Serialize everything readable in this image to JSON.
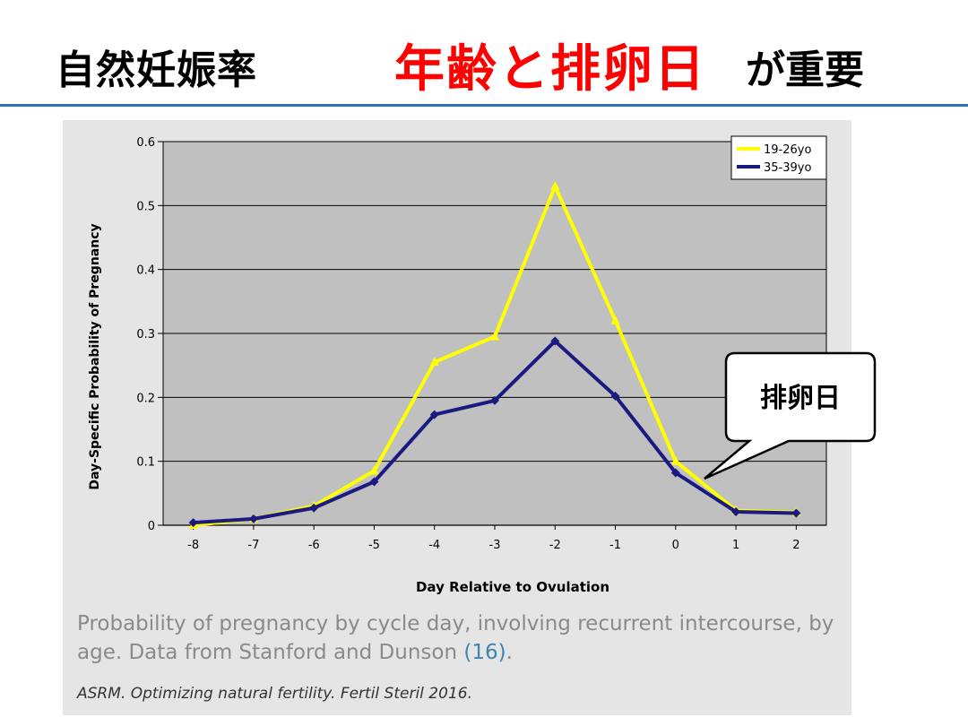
{
  "slide": {
    "title_main": "自然妊娠率",
    "title_accent": "年齢と排卵日",
    "title_tail": "が重要",
    "callout": "排卵日",
    "caption_text": "Probability of pregnancy by cycle day, involving recurrent intercourse, by age. Data from Stanford and Dunson ",
    "caption_ref": "(16)",
    "caption_end": ".",
    "citation": "ASRM. Optimizing natural fertility. Fertil Steril 2016."
  },
  "colors": {
    "accent_red": "#ff0000",
    "rule_blue": "#2e74b5",
    "plot_bg": "#c0c0c0",
    "series_young": "#ffff00",
    "series_old": "#1a1a80"
  },
  "chart_data": {
    "type": "line",
    "xlabel": "Day Relative to Ovulation",
    "ylabel": "Day-Specific Probability of Pregnancy",
    "categories": [
      "-8",
      "-7",
      "-6",
      "-5",
      "-4",
      "-3",
      "-2",
      "-1",
      "0",
      "1",
      "2"
    ],
    "x": [
      -8,
      -7,
      -6,
      -5,
      -4,
      -3,
      -2,
      -1,
      0,
      1,
      2
    ],
    "yticks": [
      "0",
      "0.1",
      "0.2",
      "0.3",
      "0.4",
      "0.5",
      "0.6"
    ],
    "ylim": [
      0,
      0.6
    ],
    "grid": true,
    "legend_position": "top-right",
    "series": [
      {
        "name": "19-26yo",
        "color": "#ffff00",
        "values": [
          0.0,
          0.01,
          0.03,
          0.085,
          0.255,
          0.295,
          0.53,
          0.32,
          0.1,
          0.023,
          0.02
        ]
      },
      {
        "name": "35-39yo",
        "color": "#1a1a80",
        "values": [
          0.004,
          0.01,
          0.027,
          0.068,
          0.173,
          0.195,
          0.288,
          0.202,
          0.082,
          0.021,
          0.019
        ]
      }
    ]
  }
}
